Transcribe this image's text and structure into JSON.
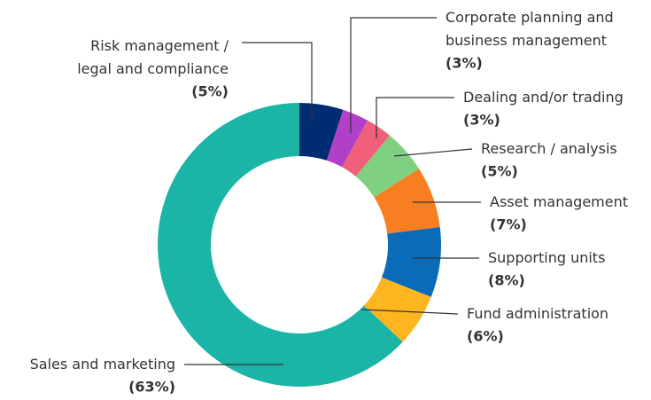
{
  "chart_data": {
    "type": "pie",
    "donut": true,
    "categories": [
      "Risk management /\nlegal and compliance",
      "Corporate planning and\nbusiness management",
      "Dealing and/or trading",
      "Research / analysis",
      "Asset management",
      "Supporting units",
      "Fund administration",
      "Sales and marketing"
    ],
    "values": [
      5,
      3,
      3,
      5,
      7,
      8,
      6,
      63
    ],
    "value_labels": [
      "(5%)",
      "(3%)",
      "(3%)",
      "(5%)",
      "(7%)",
      "(8%)",
      "(6%)",
      "(63%)"
    ],
    "colors": [
      "#002d72",
      "#b23fc8",
      "#f0607a",
      "#7fd080",
      "#f77f22",
      "#0a6bb8",
      "#fdb61f",
      "#1ab5a6"
    ]
  }
}
